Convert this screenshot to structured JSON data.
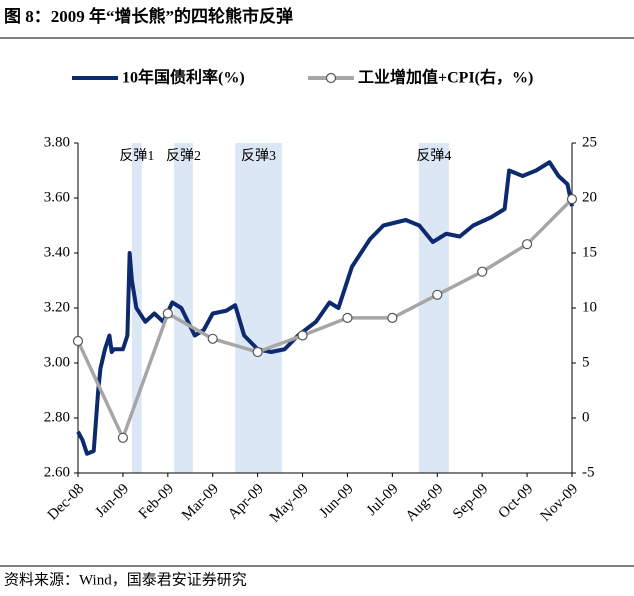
{
  "chart_data": {
    "type": "line",
    "title": "图 8：2009 年“增长熊”的四轮熊市反弹",
    "source": "资料来源：Wind，国泰君安证券研究",
    "xlim": [
      0,
      11
    ],
    "xticks": [
      {
        "value": 0,
        "label": "Dec-08"
      },
      {
        "value": 1,
        "label": "Jan-09"
      },
      {
        "value": 2,
        "label": "Feb-09"
      },
      {
        "value": 3,
        "label": "Mar-09"
      },
      {
        "value": 4,
        "label": "Apr-09"
      },
      {
        "value": 5,
        "label": "May-09"
      },
      {
        "value": 6,
        "label": "Jun-09"
      },
      {
        "value": 7,
        "label": "Jul-09"
      },
      {
        "value": 8,
        "label": "Aug-09"
      },
      {
        "value": 9,
        "label": "Sep-09"
      },
      {
        "value": 10,
        "label": "Oct-09"
      },
      {
        "value": 11,
        "label": "Nov-09"
      }
    ],
    "ylim": [
      2.6,
      3.8
    ],
    "yticks": [
      {
        "value": 2.6,
        "label": "2.60"
      },
      {
        "value": 2.8,
        "label": "2.80"
      },
      {
        "value": 3.0,
        "label": "3.00"
      },
      {
        "value": 3.2,
        "label": "3.20"
      },
      {
        "value": 3.4,
        "label": "3.40"
      },
      {
        "value": 3.6,
        "label": "3.60"
      },
      {
        "value": 3.8,
        "label": "3.80"
      }
    ],
    "y2lim": [
      -5,
      25
    ],
    "y2ticks": [
      -5,
      0,
      5,
      10,
      15,
      20,
      25
    ],
    "shaded_regions": [
      {
        "label": "反弹1",
        "x": [
          1.2,
          1.42
        ]
      },
      {
        "label": "反弹2",
        "x": [
          2.14,
          2.56
        ]
      },
      {
        "label": "反弹3",
        "x": [
          3.5,
          4.54
        ]
      },
      {
        "label": "反弹4",
        "x": [
          7.59,
          8.26
        ]
      }
    ],
    "shade_color": "#dbe7f5",
    "series": [
      {
        "name": "10年国债利率(%)",
        "color": "#0d2a6e",
        "axis": "y",
        "x": [
          0,
          0.1,
          0.2,
          0.35,
          0.45,
          0.5,
          0.6,
          0.7,
          0.75,
          0.8,
          1.0,
          1.1,
          1.15,
          1.2,
          1.3,
          1.5,
          1.7,
          1.9,
          2.1,
          2.3,
          2.6,
          2.8,
          3.0,
          3.3,
          3.5,
          3.7,
          4.0,
          4.3,
          4.6,
          4.9,
          5.3,
          5.6,
          5.8,
          6.1,
          6.5,
          6.8,
          7.3,
          7.6,
          7.9,
          8.2,
          8.5,
          8.8,
          9.2,
          9.5,
          9.6,
          9.9,
          10.2,
          10.5,
          10.7,
          10.9,
          11.0
        ],
        "values": [
          2.75,
          2.72,
          2.67,
          2.68,
          2.9,
          2.98,
          3.05,
          3.1,
          3.04,
          3.05,
          3.05,
          3.1,
          3.4,
          3.3,
          3.2,
          3.15,
          3.18,
          3.15,
          3.22,
          3.2,
          3.1,
          3.12,
          3.18,
          3.19,
          3.21,
          3.1,
          3.05,
          3.04,
          3.05,
          3.1,
          3.15,
          3.22,
          3.2,
          3.35,
          3.45,
          3.5,
          3.52,
          3.5,
          3.44,
          3.47,
          3.46,
          3.5,
          3.53,
          3.56,
          3.7,
          3.68,
          3.7,
          3.73,
          3.68,
          3.65,
          3.57
        ]
      },
      {
        "name": "工业增加值+CPI(右，%)",
        "color": "#a6a6a6",
        "axis": "y2",
        "x": [
          0,
          1,
          2,
          3,
          4,
          5,
          6,
          7,
          8,
          9,
          10,
          11
        ],
        "values": [
          7,
          -1.8,
          9.5,
          7.2,
          6,
          7.5,
          9.1,
          9.1,
          11.2,
          13.3,
          15.8,
          19.9
        ]
      }
    ]
  }
}
